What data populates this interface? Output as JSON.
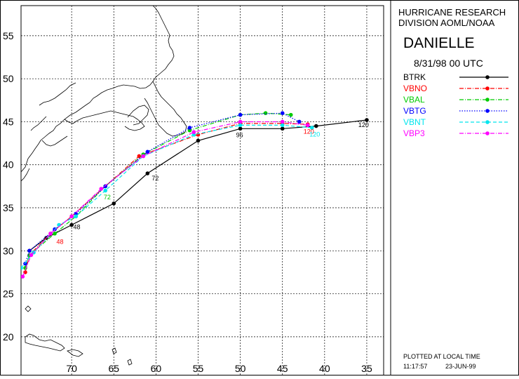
{
  "header": {
    "line1": "HURRICANE RESEARCH",
    "line2": "DIVISION AOML/NOAA",
    "storm": "DANIELLE",
    "datetime": "8/31/98 00   UTC"
  },
  "legend": [
    {
      "name": "BTRK",
      "color": "#000000"
    },
    {
      "name": "VBNO",
      "color": "#ff0000"
    },
    {
      "name": "VBAL",
      "color": "#00cc00"
    },
    {
      "name": "VBTG",
      "color": "#0000ff"
    },
    {
      "name": "VBNT",
      "color": "#00e5ee"
    },
    {
      "name": "VBP3",
      "color": "#ff00ff"
    }
  ],
  "footer": {
    "plotted": "PLOTTED AT LOCAL TIME",
    "time": "11:17:57",
    "date": "23-JUN-99"
  },
  "axes": {
    "lat_labels": [
      "55",
      "50",
      "45",
      "40",
      "35",
      "30",
      "25",
      "20"
    ],
    "lon_labels": [
      "70",
      "65",
      "60",
      "55",
      "50",
      "45",
      "40",
      "35"
    ]
  },
  "chart_data": {
    "type": "map",
    "lon_range": [
      -76,
      -33
    ],
    "lat_range": [
      15.5,
      58.5
    ],
    "lat_ticks": [
      55,
      50,
      45,
      40,
      35,
      30,
      25,
      20
    ],
    "lon_ticks": [
      -70,
      -65,
      -60,
      -55,
      -50,
      -45,
      -40,
      -35
    ],
    "tracks": [
      {
        "name": "BTRK",
        "color": "#000000",
        "style": "solid",
        "points": [
          [
            -75,
            30
          ],
          [
            -73,
            31.5
          ],
          [
            -70,
            33
          ],
          [
            -65,
            35.5
          ],
          [
            -61,
            39
          ],
          [
            -55,
            42.8
          ],
          [
            -50,
            44.2
          ],
          [
            -45,
            44.2
          ],
          [
            -41,
            44.5
          ],
          [
            -35,
            45.2
          ]
        ]
      },
      {
        "name": "VBNO",
        "color": "#ff0000",
        "style": "dashdot",
        "points": [
          [
            -75.5,
            27.5
          ],
          [
            -75,
            29.5
          ],
          [
            -72.5,
            32
          ],
          [
            -70,
            34
          ],
          [
            -66,
            37.5
          ],
          [
            -62,
            41
          ],
          [
            -55,
            43.5
          ],
          [
            -50,
            44.8
          ],
          [
            -45,
            44.8
          ],
          [
            -42,
            44.7
          ]
        ]
      },
      {
        "name": "VBAL",
        "color": "#00cc00",
        "style": "dashdot",
        "points": [
          [
            -75.5,
            28
          ],
          [
            -75,
            29.5
          ],
          [
            -72,
            32
          ],
          [
            -69.5,
            34
          ],
          [
            -66,
            37.5
          ],
          [
            -61.5,
            41.2
          ],
          [
            -56,
            44
          ],
          [
            -50,
            45.8
          ],
          [
            -47,
            46
          ],
          [
            -44,
            45.8
          ]
        ]
      },
      {
        "name": "VBTG",
        "color": "#0000ff",
        "style": "dotted",
        "points": [
          [
            -75.5,
            28.5
          ],
          [
            -75,
            30
          ],
          [
            -72,
            32.5
          ],
          [
            -69.5,
            34.3
          ],
          [
            -66,
            37.5
          ],
          [
            -61,
            41.5
          ],
          [
            -56,
            44.3
          ],
          [
            -50,
            45.8
          ],
          [
            -45,
            46
          ],
          [
            -43,
            45
          ]
        ]
      },
      {
        "name": "VBNT",
        "color": "#00e5ee",
        "style": "dashed",
        "points": [
          [
            -76,
            28
          ],
          [
            -74.5,
            29.8
          ],
          [
            -71.5,
            33
          ],
          [
            -69.5,
            34
          ],
          [
            -66,
            37
          ],
          [
            -61.5,
            41
          ],
          [
            -55.5,
            43.5
          ],
          [
            -50,
            44.6
          ],
          [
            -45,
            44.6
          ],
          [
            -41.5,
            44.3
          ]
        ]
      },
      {
        "name": "VBP3",
        "color": "#ff00ff",
        "style": "dashdot",
        "points": [
          [
            -75.8,
            27
          ],
          [
            -74.8,
            29.5
          ],
          [
            -72.5,
            32
          ],
          [
            -70,
            34
          ],
          [
            -66.5,
            37.2
          ],
          [
            -61.5,
            41
          ],
          [
            -55.5,
            43.8
          ],
          [
            -50,
            45
          ],
          [
            -45,
            45
          ],
          [
            -42,
            44.6
          ]
        ]
      }
    ],
    "hour_labels": [
      {
        "text": "48",
        "color": "#000000",
        "lon": -69.8,
        "lat": 32.5
      },
      {
        "text": "48",
        "color": "#ff0000",
        "lon": -71.8,
        "lat": 30.8
      },
      {
        "text": "72",
        "color": "#000000",
        "lon": -60.5,
        "lat": 38.2
      },
      {
        "text": "72",
        "color": "#00cc00",
        "lon": -66.2,
        "lat": 36
      },
      {
        "text": "96",
        "color": "#000000",
        "lon": -50.5,
        "lat": 43.2
      },
      {
        "text": "120",
        "color": "#000000",
        "lon": -36,
        "lat": 44.4
      },
      {
        "text": "120",
        "color": "#ff0000",
        "lon": -42.5,
        "lat": 43.6
      },
      {
        "text": "120",
        "color": "#00e5ee",
        "lon": -41.8,
        "lat": 43.3
      }
    ]
  }
}
